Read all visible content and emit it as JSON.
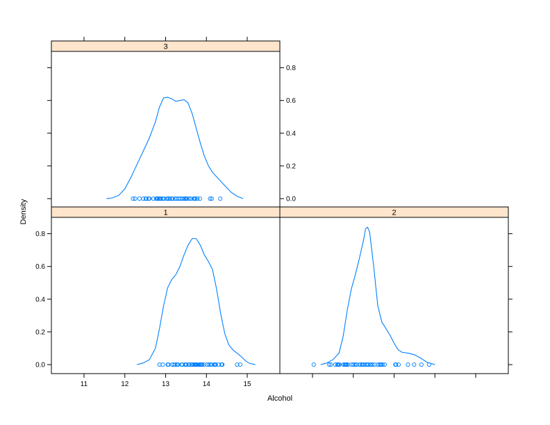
{
  "chart_data": {
    "type": "density",
    "layout": "2x2 lattice (3 panels)",
    "xlabel": "Alcohol",
    "ylabel": "Density",
    "xlim": [
      10.2,
      15.8
    ],
    "ylim": [
      -0.055,
      0.9
    ],
    "x_ticks": [
      11,
      12,
      13,
      14,
      15
    ],
    "y_ticks": [
      0.0,
      0.2,
      0.4,
      0.6,
      0.8
    ],
    "x_tick_labels": [
      "11",
      "12",
      "13",
      "14",
      "15"
    ],
    "y_tick_labels": [
      "0.0",
      "0.2",
      "0.4",
      "0.6",
      "0.8"
    ],
    "panels": [
      {
        "strip": "3",
        "curve": [
          [
            11.55,
            0.0
          ],
          [
            11.7,
            0.005
          ],
          [
            11.85,
            0.02
          ],
          [
            12.0,
            0.06
          ],
          [
            12.15,
            0.13
          ],
          [
            12.3,
            0.21
          ],
          [
            12.45,
            0.29
          ],
          [
            12.6,
            0.37
          ],
          [
            12.75,
            0.47
          ],
          [
            12.85,
            0.56
          ],
          [
            12.95,
            0.615
          ],
          [
            13.05,
            0.62
          ],
          [
            13.15,
            0.61
          ],
          [
            13.25,
            0.595
          ],
          [
            13.35,
            0.6
          ],
          [
            13.45,
            0.605
          ],
          [
            13.55,
            0.585
          ],
          [
            13.65,
            0.52
          ],
          [
            13.75,
            0.43
          ],
          [
            13.85,
            0.34
          ],
          [
            13.95,
            0.26
          ],
          [
            14.05,
            0.2
          ],
          [
            14.15,
            0.16
          ],
          [
            14.3,
            0.12
          ],
          [
            14.45,
            0.08
          ],
          [
            14.6,
            0.04
          ],
          [
            14.75,
            0.015
          ],
          [
            14.9,
            0.0
          ]
        ],
        "points": [
          12.2,
          12.25,
          12.36,
          12.45,
          12.51,
          12.53,
          12.58,
          12.6,
          12.7,
          12.77,
          12.79,
          12.81,
          12.84,
          12.86,
          12.87,
          12.88,
          12.93,
          12.96,
          13.03,
          13.05,
          13.08,
          13.11,
          13.16,
          13.17,
          13.23,
          13.27,
          13.32,
          13.36,
          13.4,
          13.45,
          13.48,
          13.5,
          13.52,
          13.58,
          13.62,
          13.69,
          13.71,
          13.73,
          13.78,
          13.84,
          14.09,
          14.13,
          14.34
        ]
      },
      {
        "strip": "1",
        "curve": [
          [
            12.3,
            0.0
          ],
          [
            12.45,
            0.01
          ],
          [
            12.6,
            0.03
          ],
          [
            12.75,
            0.1
          ],
          [
            12.85,
            0.22
          ],
          [
            12.95,
            0.36
          ],
          [
            13.05,
            0.47
          ],
          [
            13.15,
            0.52
          ],
          [
            13.25,
            0.55
          ],
          [
            13.35,
            0.6
          ],
          [
            13.45,
            0.67
          ],
          [
            13.55,
            0.73
          ],
          [
            13.65,
            0.77
          ],
          [
            13.75,
            0.77
          ],
          [
            13.85,
            0.73
          ],
          [
            13.95,
            0.67
          ],
          [
            14.05,
            0.63
          ],
          [
            14.15,
            0.58
          ],
          [
            14.25,
            0.46
          ],
          [
            14.35,
            0.31
          ],
          [
            14.45,
            0.19
          ],
          [
            14.55,
            0.12
          ],
          [
            14.65,
            0.09
          ],
          [
            14.75,
            0.07
          ],
          [
            14.85,
            0.05
          ],
          [
            14.95,
            0.025
          ],
          [
            15.05,
            0.008
          ],
          [
            15.2,
            0.0
          ]
        ],
        "points": [
          12.85,
          12.93,
          13.05,
          13.07,
          13.16,
          13.2,
          13.24,
          13.28,
          13.29,
          13.3,
          13.39,
          13.41,
          13.48,
          13.5,
          13.51,
          13.56,
          13.58,
          13.63,
          13.64,
          13.68,
          13.71,
          13.72,
          13.73,
          13.74,
          13.75,
          13.76,
          13.77,
          13.82,
          13.83,
          13.86,
          13.87,
          13.88,
          13.9,
          13.94,
          14.02,
          14.06,
          14.1,
          14.12,
          14.19,
          14.21,
          14.22,
          14.23,
          14.3,
          14.37,
          14.38,
          14.39,
          14.75,
          14.83
        ]
      },
      {
        "strip": "2",
        "curve": [
          [
            11.2,
            0.0
          ],
          [
            11.35,
            0.01
          ],
          [
            11.5,
            0.03
          ],
          [
            11.65,
            0.07
          ],
          [
            11.75,
            0.17
          ],
          [
            11.85,
            0.33
          ],
          [
            11.95,
            0.46
          ],
          [
            12.05,
            0.55
          ],
          [
            12.15,
            0.65
          ],
          [
            12.25,
            0.76
          ],
          [
            12.3,
            0.83
          ],
          [
            12.35,
            0.84
          ],
          [
            12.4,
            0.81
          ],
          [
            12.5,
            0.6
          ],
          [
            12.6,
            0.36
          ],
          [
            12.7,
            0.26
          ],
          [
            12.8,
            0.22
          ],
          [
            12.9,
            0.18
          ],
          [
            13.0,
            0.13
          ],
          [
            13.1,
            0.09
          ],
          [
            13.2,
            0.075
          ],
          [
            13.35,
            0.07
          ],
          [
            13.5,
            0.06
          ],
          [
            13.65,
            0.04
          ],
          [
            13.8,
            0.015
          ],
          [
            14.0,
            0.0
          ]
        ],
        "points": [
          11.03,
          11.41,
          11.45,
          11.56,
          11.61,
          11.62,
          11.64,
          11.66,
          11.76,
          11.79,
          11.81,
          11.82,
          11.84,
          11.87,
          11.96,
          12.0,
          12.04,
          12.07,
          12.08,
          12.16,
          12.17,
          12.21,
          12.22,
          12.25,
          12.29,
          12.33,
          12.34,
          12.37,
          12.42,
          12.43,
          12.47,
          12.52,
          12.6,
          12.64,
          12.67,
          12.69,
          12.72,
          12.77,
          13.03,
          13.05,
          13.11,
          13.34,
          13.49,
          13.67,
          13.86
        ]
      }
    ]
  }
}
